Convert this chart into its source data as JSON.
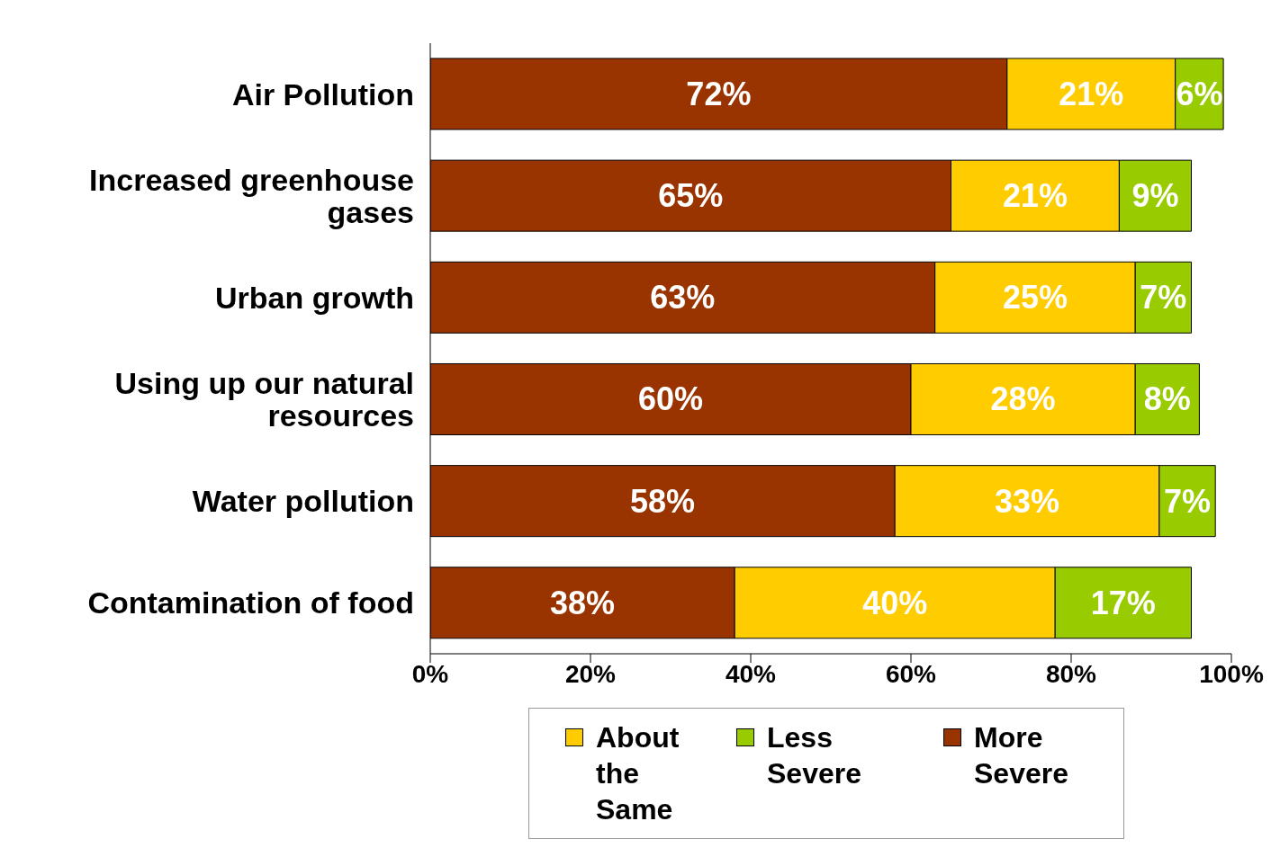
{
  "chart_data": {
    "type": "bar",
    "orientation": "horizontal",
    "stacked": true,
    "categories": [
      "Air Pollution",
      "Increased greenhouse gases",
      "Urban growth",
      "Using up our natural resources",
      "Water pollution",
      "Contamination of food"
    ],
    "series": [
      {
        "name": "More Severe",
        "color": "#993300",
        "values": [
          72,
          65,
          63,
          60,
          58,
          38
        ],
        "value_labels": [
          "72%",
          "65%",
          "63%",
          "60%",
          "58%",
          "38%"
        ]
      },
      {
        "name": "About the Same",
        "color": "#ffcc00",
        "values": [
          21,
          21,
          25,
          28,
          33,
          40
        ],
        "value_labels": [
          "21%",
          "21%",
          "25%",
          "28%",
          "33%",
          "40%"
        ]
      },
      {
        "name": "Less Severe",
        "color": "#99cc00",
        "values": [
          6,
          9,
          7,
          8,
          7,
          17
        ],
        "value_labels": [
          "6%",
          "9%",
          "7%",
          "8%",
          "7%",
          "17%"
        ]
      }
    ],
    "xlim": [
      0,
      100
    ],
    "xticks": [
      {
        "value": 0,
        "label": "0%"
      },
      {
        "value": 20,
        "label": "20%"
      },
      {
        "value": 40,
        "label": "40%"
      },
      {
        "value": 60,
        "label": "60%"
      },
      {
        "value": 80,
        "label": "80%"
      },
      {
        "value": 100,
        "label": "100%"
      }
    ],
    "grid": false,
    "legend": "bottom"
  }
}
